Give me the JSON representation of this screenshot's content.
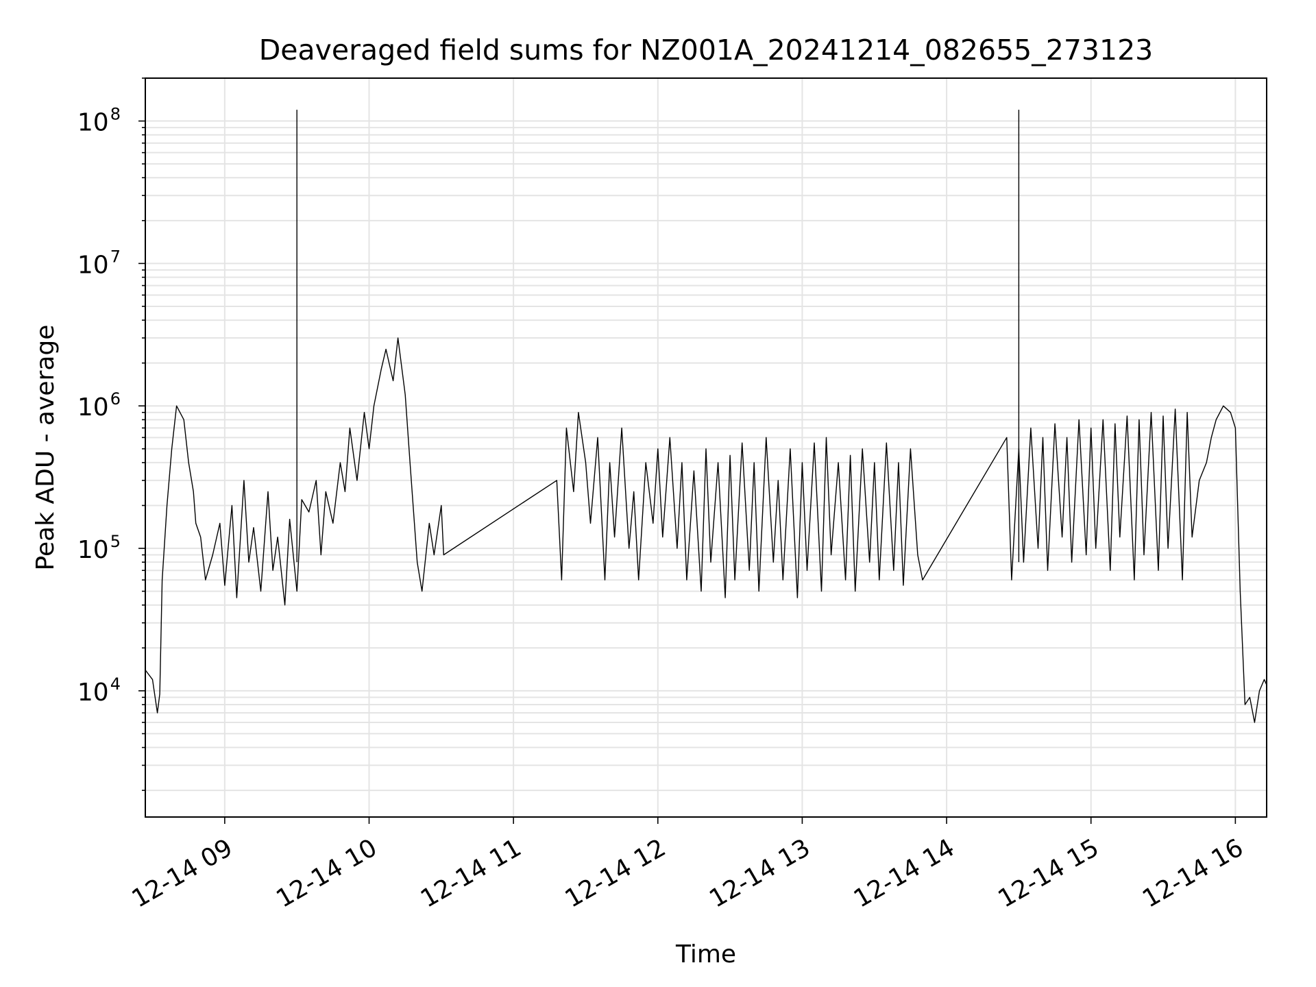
{
  "chart_data": {
    "type": "line",
    "title": "Deaveraged field sums for NZ001A_20241214_082655_273123",
    "xlabel": "Time",
    "ylabel": "Peak ADU - average",
    "yscale": "log",
    "xlim": [
      "2024-12-14T08:27:00",
      "2024-12-14T16:13:00"
    ],
    "ylim": [
      1300,
      200000000
    ],
    "grid": true,
    "legend": "none",
    "line_color": "#000000",
    "x_tick_labels": [
      "12-14 09",
      "12-14 10",
      "12-14 11",
      "12-14 12",
      "12-14 13",
      "12-14 14",
      "12-14 15",
      "12-14 16"
    ],
    "x_tick_values": [
      "2024-12-14T09:00",
      "2024-12-14T10:00",
      "2024-12-14T11:00",
      "2024-12-14T12:00",
      "2024-12-14T13:00",
      "2024-12-14T14:00",
      "2024-12-14T15:00",
      "2024-12-14T16:00"
    ],
    "y_tick_labels": [
      {
        "base": "10",
        "exp": "4",
        "value": 10000
      },
      {
        "base": "10",
        "exp": "5",
        "value": 100000
      },
      {
        "base": "10",
        "exp": "6",
        "value": 1000000
      },
      {
        "base": "10",
        "exp": "7",
        "value": 10000000
      },
      {
        "base": "10",
        "exp": "8",
        "value": 100000000
      }
    ],
    "series": [
      {
        "x": [
          "08:27",
          "08:30",
          "08:32",
          "08:33",
          "08:34",
          "08:36",
          "08:38",
          "08:40",
          "08:43",
          "08:45",
          "08:47",
          "08:48",
          "08:50",
          "08:52",
          "08:55",
          "08:58",
          "09:00",
          "09:03",
          "09:05",
          "09:08",
          "09:10",
          "09:12",
          "09:15",
          "09:18",
          "09:20",
          "09:22",
          "09:25",
          "09:27",
          "09:30",
          "09:32",
          "09:35",
          "09:38",
          "09:40",
          "09:42",
          "09:45",
          "09:48",
          "09:50",
          "09:52",
          "09:55",
          "09:58",
          "10:00",
          "10:02",
          "10:05",
          "10:07",
          "10:10",
          "10:12",
          "10:15",
          "10:17",
          "10:20",
          "10:22",
          "10:25",
          "10:27",
          "10:30",
          "10:31",
          "11:18",
          "11:20",
          "11:22",
          "11:25",
          "11:27",
          "11:30",
          "11:32",
          "11:35",
          "11:38",
          "11:40",
          "11:42",
          "11:45",
          "11:48",
          "11:50",
          "11:52",
          "11:55",
          "11:58",
          "12:00",
          "12:02",
          "12:05",
          "12:08",
          "12:10",
          "12:12",
          "12:15",
          "12:18",
          "12:20",
          "12:22",
          "12:25",
          "12:28",
          "12:30",
          "12:32",
          "12:35",
          "12:38",
          "12:40",
          "12:42",
          "12:45",
          "12:48",
          "12:50",
          "12:52",
          "12:55",
          "12:58",
          "13:00",
          "13:02",
          "13:05",
          "13:08",
          "13:10",
          "13:12",
          "13:15",
          "13:18",
          "13:20",
          "13:22",
          "13:25",
          "13:28",
          "13:30",
          "13:32",
          "13:35",
          "13:38",
          "13:40",
          "13:42",
          "13:45",
          "13:48",
          "13:50",
          "14:25",
          "14:27",
          "14:30",
          "14:32",
          "14:35",
          "14:38",
          "14:40",
          "14:42",
          "14:45",
          "14:48",
          "14:50",
          "14:52",
          "14:55",
          "14:58",
          "15:00",
          "15:02",
          "15:05",
          "15:08",
          "15:10",
          "15:12",
          "15:15",
          "15:18",
          "15:20",
          "15:22",
          "15:25",
          "15:28",
          "15:30",
          "15:32",
          "15:35",
          "15:38",
          "15:40",
          "15:42",
          "15:45",
          "15:48",
          "15:50",
          "15:52",
          "15:55",
          "15:58",
          "16:00",
          "16:02",
          "16:04",
          "16:06",
          "16:08",
          "16:10",
          "16:12",
          "16:13"
        ],
        "y": [
          14000,
          12000,
          7000,
          9500,
          60000,
          200000,
          500000,
          1000000,
          800000,
          400000,
          250000,
          150000,
          120000,
          60000,
          90000,
          150000,
          55000,
          200000,
          45000,
          300000,
          80000,
          140000,
          50000,
          250000,
          70000,
          120000,
          40000,
          160000,
          50000,
          220000,
          180000,
          300000,
          90000,
          250000,
          150000,
          400000,
          250000,
          700000,
          300000,
          900000,
          500000,
          1000000,
          1800000,
          2500000,
          1500000,
          3000000,
          1200000,
          400000,
          80000,
          50000,
          150000,
          90000,
          200000,
          90000,
          300000,
          60000,
          700000,
          250000,
          900000,
          400000,
          150000,
          600000,
          60000,
          400000,
          120000,
          700000,
          100000,
          250000,
          60000,
          400000,
          150000,
          500000,
          120000,
          600000,
          100000,
          400000,
          60000,
          350000,
          50000,
          500000,
          80000,
          400000,
          45000,
          450000,
          60000,
          550000,
          70000,
          400000,
          50000,
          600000,
          80000,
          300000,
          60000,
          500000,
          45000,
          400000,
          70000,
          550000,
          50000,
          600000,
          90000,
          400000,
          60000,
          450000,
          50000,
          500000,
          80000,
          400000,
          60000,
          550000,
          70000,
          400000,
          55000,
          500000,
          90000,
          60000,
          600000,
          60000,
          500000,
          80000,
          700000,
          100000,
          600000,
          70000,
          750000,
          120000,
          600000,
          80000,
          800000,
          90000,
          700000,
          100000,
          800000,
          70000,
          750000,
          120000,
          850000,
          60000,
          800000,
          90000,
          900000,
          70000,
          850000,
          100000,
          950000,
          60000,
          900000,
          120000,
          300000,
          400000,
          600000,
          800000,
          1000000,
          900000,
          700000,
          50000,
          8000,
          9000,
          6000,
          10000,
          12000,
          11000
        ]
      }
    ],
    "annotations": [
      {
        "label": "spike",
        "x": "09:30",
        "y": 120000000
      },
      {
        "label": "spike",
        "x": "14:30",
        "y": 120000000
      }
    ]
  }
}
